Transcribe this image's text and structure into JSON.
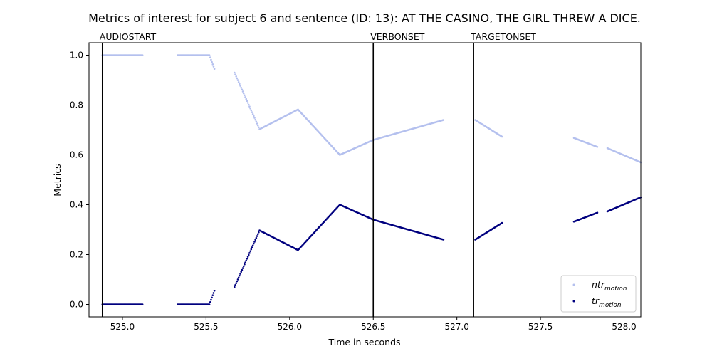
{
  "chart_data": {
    "type": "scatter",
    "title": "Metrics of interest for subject 6 and sentence (ID: 13): AT THE CASINO, THE GIRL THREW A DICE.",
    "xlabel": "Time in seconds",
    "ylabel": "Metrics",
    "xlim": [
      524.8,
      528.1
    ],
    "ylim": [
      -0.05,
      1.05
    ],
    "xticks": [
      525.0,
      525.5,
      526.0,
      526.5,
      527.0,
      527.5,
      528.0
    ],
    "xtick_labels": [
      "525.0",
      "525.5",
      "526.0",
      "526.5",
      "527.0",
      "527.5",
      "528.0"
    ],
    "yticks": [
      0.0,
      0.2,
      0.4,
      0.6,
      0.8,
      1.0
    ],
    "ytick_labels": [
      "0.0",
      "0.2",
      "0.4",
      "0.6",
      "0.8",
      "1.0"
    ],
    "grid": false,
    "legend_position": "bottom-right",
    "events": [
      {
        "label": "AUDIOSTART",
        "x": 524.88
      },
      {
        "label": "VERBONSET",
        "x": 526.5
      },
      {
        "label": "TARGETONSET",
        "x": 527.1
      }
    ],
    "series": [
      {
        "name": "ntr",
        "subscript": "motion",
        "color": "#b4c0ee",
        "segments": [
          [
            [
              524.88,
              1.0
            ],
            [
              525.12,
              1.0
            ]
          ],
          [
            [
              525.33,
              1.0
            ],
            [
              525.52,
              1.0
            ],
            [
              525.55,
              0.945
            ]
          ],
          [
            [
              525.67,
              0.93
            ],
            [
              525.82,
              0.703
            ],
            [
              526.05,
              0.782
            ],
            [
              526.3,
              0.6
            ],
            [
              526.5,
              0.66
            ],
            [
              526.92,
              0.74
            ]
          ],
          [
            [
              527.11,
              0.74
            ],
            [
              527.27,
              0.673
            ]
          ],
          [
            [
              527.7,
              0.668
            ],
            [
              527.84,
              0.632
            ]
          ],
          [
            [
              527.9,
              0.627
            ],
            [
              528.1,
              0.57
            ]
          ]
        ]
      },
      {
        "name": "tr",
        "subscript": "motion",
        "color": "#00007f",
        "segments": [
          [
            [
              524.88,
              0.0
            ],
            [
              525.12,
              0.0
            ]
          ],
          [
            [
              525.33,
              0.0
            ],
            [
              525.52,
              0.0
            ],
            [
              525.55,
              0.055
            ]
          ],
          [
            [
              525.67,
              0.07
            ],
            [
              525.82,
              0.297
            ],
            [
              526.05,
              0.218
            ],
            [
              526.3,
              0.4
            ],
            [
              526.5,
              0.34
            ],
            [
              526.92,
              0.26
            ]
          ],
          [
            [
              527.11,
              0.26
            ],
            [
              527.27,
              0.327
            ]
          ],
          [
            [
              527.7,
              0.332
            ],
            [
              527.84,
              0.368
            ]
          ],
          [
            [
              527.9,
              0.373
            ],
            [
              528.1,
              0.43
            ]
          ]
        ]
      }
    ]
  }
}
